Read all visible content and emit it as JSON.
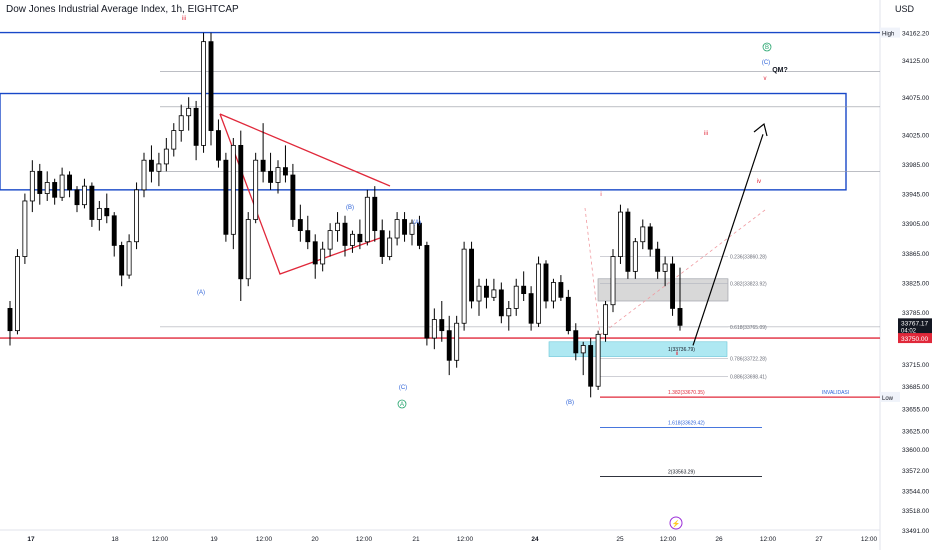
{
  "header": {
    "title": "Dow Jones Industrial Average Index, 1h, EIGHTCAP",
    "currency": "USD"
  },
  "colors": {
    "up": "#ffffff",
    "down": "#000000",
    "wick": "#000000",
    "box_blue": "#1848c8",
    "support_red": "#e0283a",
    "triangle_red": "#e0283a",
    "wave_red": "#e0283a",
    "wave_blue": "#2d62d8",
    "wave_green": "#22a36b",
    "fib_cyan": "#aee8f2",
    "grey_zone": "#d8d8d8",
    "arrow": "#000000"
  },
  "chart_data": {
    "type": "candlestick",
    "symbol": "Dow Jones Industrial Average Index",
    "timeframe": "1h",
    "ylim": [
      33491,
      34190
    ],
    "y_ticks": [
      "34162.20",
      "34125.00",
      "34075.00",
      "34025.00",
      "33985.00",
      "33945.00",
      "33905.00",
      "33865.00",
      "33825.00",
      "33785.00",
      "33750.00",
      "33715.00",
      "33685.00",
      "33655.00",
      "33625.00",
      "33600.00",
      "33572.00",
      "33544.00",
      "33518.00",
      "33491.00"
    ],
    "x_ticks": [
      "17",
      "18",
      "12:00",
      "19",
      "12:00",
      "20",
      "12:00",
      "21",
      "12:00",
      "24",
      "25",
      "12:00",
      "26",
      "12:00",
      "27",
      "12:00"
    ],
    "price_labels": {
      "high": {
        "label": "High",
        "value": "34162.20"
      },
      "low": {
        "label": "Low",
        "value": "33670.55"
      },
      "last": {
        "value": "33767.17",
        "countdown": "04:02"
      },
      "support": {
        "value": "33750.00"
      }
    },
    "candles": [
      [
        33790,
        33800,
        33740,
        33760
      ],
      [
        33760,
        33870,
        33755,
        33860
      ],
      [
        33860,
        33945,
        33850,
        33935
      ],
      [
        33935,
        33990,
        33920,
        33975
      ],
      [
        33975,
        33985,
        33930,
        33945
      ],
      [
        33945,
        33975,
        33935,
        33960
      ],
      [
        33960,
        33965,
        33930,
        33940
      ],
      [
        33940,
        33980,
        33935,
        33970
      ],
      [
        33970,
        33975,
        33940,
        33950
      ],
      [
        33950,
        33955,
        33920,
        33930
      ],
      [
        33930,
        33965,
        33925,
        33955
      ],
      [
        33955,
        33960,
        33900,
        33910
      ],
      [
        33910,
        33935,
        33895,
        33925
      ],
      [
        33925,
        33945,
        33905,
        33915
      ],
      [
        33915,
        33920,
        33860,
        33875
      ],
      [
        33875,
        33880,
        33820,
        33835
      ],
      [
        33835,
        33890,
        33830,
        33880
      ],
      [
        33880,
        33960,
        33870,
        33950
      ],
      [
        33950,
        34000,
        33940,
        33990
      ],
      [
        33990,
        34010,
        33960,
        33975
      ],
      [
        33975,
        34000,
        33955,
        33985
      ],
      [
        33985,
        34020,
        33975,
        34005
      ],
      [
        34005,
        34040,
        33995,
        34030
      ],
      [
        34030,
        34065,
        34015,
        34050
      ],
      [
        34050,
        34075,
        34030,
        34060
      ],
      [
        34060,
        34070,
        33990,
        34010
      ],
      [
        34010,
        34162,
        34000,
        34150
      ],
      [
        34150,
        34162,
        34010,
        34030
      ],
      [
        34030,
        34045,
        33980,
        33990
      ],
      [
        33990,
        34000,
        33880,
        33890
      ],
      [
        33890,
        34020,
        33870,
        34010
      ],
      [
        34010,
        34030,
        33800,
        33830
      ],
      [
        33830,
        33920,
        33820,
        33910
      ],
      [
        33910,
        34000,
        33905,
        33990
      ],
      [
        33990,
        34040,
        33960,
        33975
      ],
      [
        33975,
        34000,
        33950,
        33960
      ],
      [
        33960,
        33990,
        33945,
        33980
      ],
      [
        33980,
        34010,
        33960,
        33970
      ],
      [
        33970,
        33985,
        33900,
        33910
      ],
      [
        33910,
        33930,
        33880,
        33895
      ],
      [
        33895,
        33915,
        33870,
        33880
      ],
      [
        33880,
        33890,
        33830,
        33850
      ],
      [
        33850,
        33880,
        33840,
        33870
      ],
      [
        33870,
        33905,
        33860,
        33895
      ],
      [
        33895,
        33920,
        33880,
        33905
      ],
      [
        33905,
        33915,
        33860,
        33875
      ],
      [
        33875,
        33895,
        33865,
        33890
      ],
      [
        33890,
        33910,
        33870,
        33880
      ],
      [
        33880,
        33950,
        33875,
        33940
      ],
      [
        33940,
        33955,
        33880,
        33895
      ],
      [
        33895,
        33910,
        33850,
        33860
      ],
      [
        33860,
        33895,
        33855,
        33885
      ],
      [
        33885,
        33920,
        33875,
        33910
      ],
      [
        33910,
        33920,
        33880,
        33890
      ],
      [
        33890,
        33910,
        33875,
        33905
      ],
      [
        33905,
        33915,
        33870,
        33875
      ],
      [
        33875,
        33880,
        33740,
        33750
      ],
      [
        33750,
        33790,
        33735,
        33775
      ],
      [
        33775,
        33800,
        33745,
        33760
      ],
      [
        33760,
        33780,
        33700,
        33720
      ],
      [
        33720,
        33780,
        33710,
        33770
      ],
      [
        33770,
        33880,
        33760,
        33870
      ],
      [
        33870,
        33880,
        33790,
        33800
      ],
      [
        33800,
        33830,
        33780,
        33820
      ],
      [
        33820,
        33830,
        33790,
        33805
      ],
      [
        33805,
        33830,
        33800,
        33815
      ],
      [
        33815,
        33825,
        33770,
        33780
      ],
      [
        33780,
        33800,
        33760,
        33790
      ],
      [
        33790,
        33830,
        33780,
        33820
      ],
      [
        33820,
        33840,
        33800,
        33810
      ],
      [
        33810,
        33820,
        33760,
        33770
      ],
      [
        33770,
        33860,
        33765,
        33850
      ],
      [
        33850,
        33855,
        33790,
        33800
      ],
      [
        33800,
        33830,
        33790,
        33825
      ],
      [
        33825,
        33835,
        33800,
        33805
      ],
      [
        33805,
        33815,
        33755,
        33760
      ],
      [
        33760,
        33770,
        33720,
        33730
      ],
      [
        33730,
        33745,
        33700,
        33740
      ],
      [
        33740,
        33750,
        33670,
        33685
      ],
      [
        33685,
        33760,
        33680,
        33755
      ],
      [
        33755,
        33800,
        33745,
        33795
      ],
      [
        33795,
        33870,
        33785,
        33860
      ],
      [
        33860,
        33930,
        33850,
        33920
      ],
      [
        33920,
        33925,
        33830,
        33840
      ],
      [
        33840,
        33885,
        33830,
        33880
      ],
      [
        33880,
        33910,
        33870,
        33900
      ],
      [
        33900,
        33905,
        33860,
        33870
      ],
      [
        33870,
        33880,
        33830,
        33840
      ],
      [
        33840,
        33860,
        33820,
        33850
      ],
      [
        33850,
        33860,
        33780,
        33790
      ],
      [
        33790,
        33845,
        33760,
        33767.17
      ]
    ],
    "zones": [
      {
        "name": "resistance-box",
        "low": 33950,
        "high": 34080
      },
      {
        "name": "support-line",
        "value": 33750
      },
      {
        "name": "grey-zone",
        "low": 33800,
        "high": 33830
      }
    ],
    "fib_levels": [
      {
        "label": "0.236(33860.28)",
        "value": 33860.28
      },
      {
        "label": "0.382(33823.92)",
        "value": 33823.92
      },
      {
        "label": "0.618(33765.09)",
        "value": 33765.09
      },
      {
        "label": "0.786(33722.28)",
        "value": 33722.28
      },
      {
        "label": "0.886(33698.41)",
        "value": 33698.41
      }
    ],
    "extensions": [
      {
        "label": "1.382(33670.35)",
        "value": 33670.35,
        "color": "#e0283a"
      },
      {
        "label": "1.618(33629.42)",
        "value": 33629.42,
        "color": "#2d62d8"
      },
      {
        "label": "2(33563.29)",
        "value": 33563.29,
        "color": "#131722"
      }
    ],
    "tag_736": "1(33736.79)",
    "invalidation_label": "INVALIDASI",
    "wave_labels": [
      {
        "text": "iii",
        "color": "wave_red"
      },
      {
        "text": "(A)",
        "color": "wave_blue"
      },
      {
        "text": "(B)",
        "color": "wave_blue"
      },
      {
        "text": "(A)",
        "color": "wave_blue"
      },
      {
        "text": "(C)",
        "color": "wave_blue"
      },
      {
        "text": "A",
        "color": "wave_green"
      },
      {
        "text": "(B)",
        "color": "wave_blue"
      },
      {
        "text": "i",
        "color": "wave_red"
      },
      {
        "text": "ii",
        "color": "wave_red"
      },
      {
        "text": "iii",
        "color": "wave_red"
      },
      {
        "text": "iv",
        "color": "wave_red"
      },
      {
        "text": "v",
        "color": "wave_red"
      },
      {
        "text": "(C)",
        "color": "wave_blue"
      },
      {
        "text": "B",
        "color": "wave_green"
      },
      {
        "text": "QM?",
        "color": "black"
      }
    ]
  }
}
